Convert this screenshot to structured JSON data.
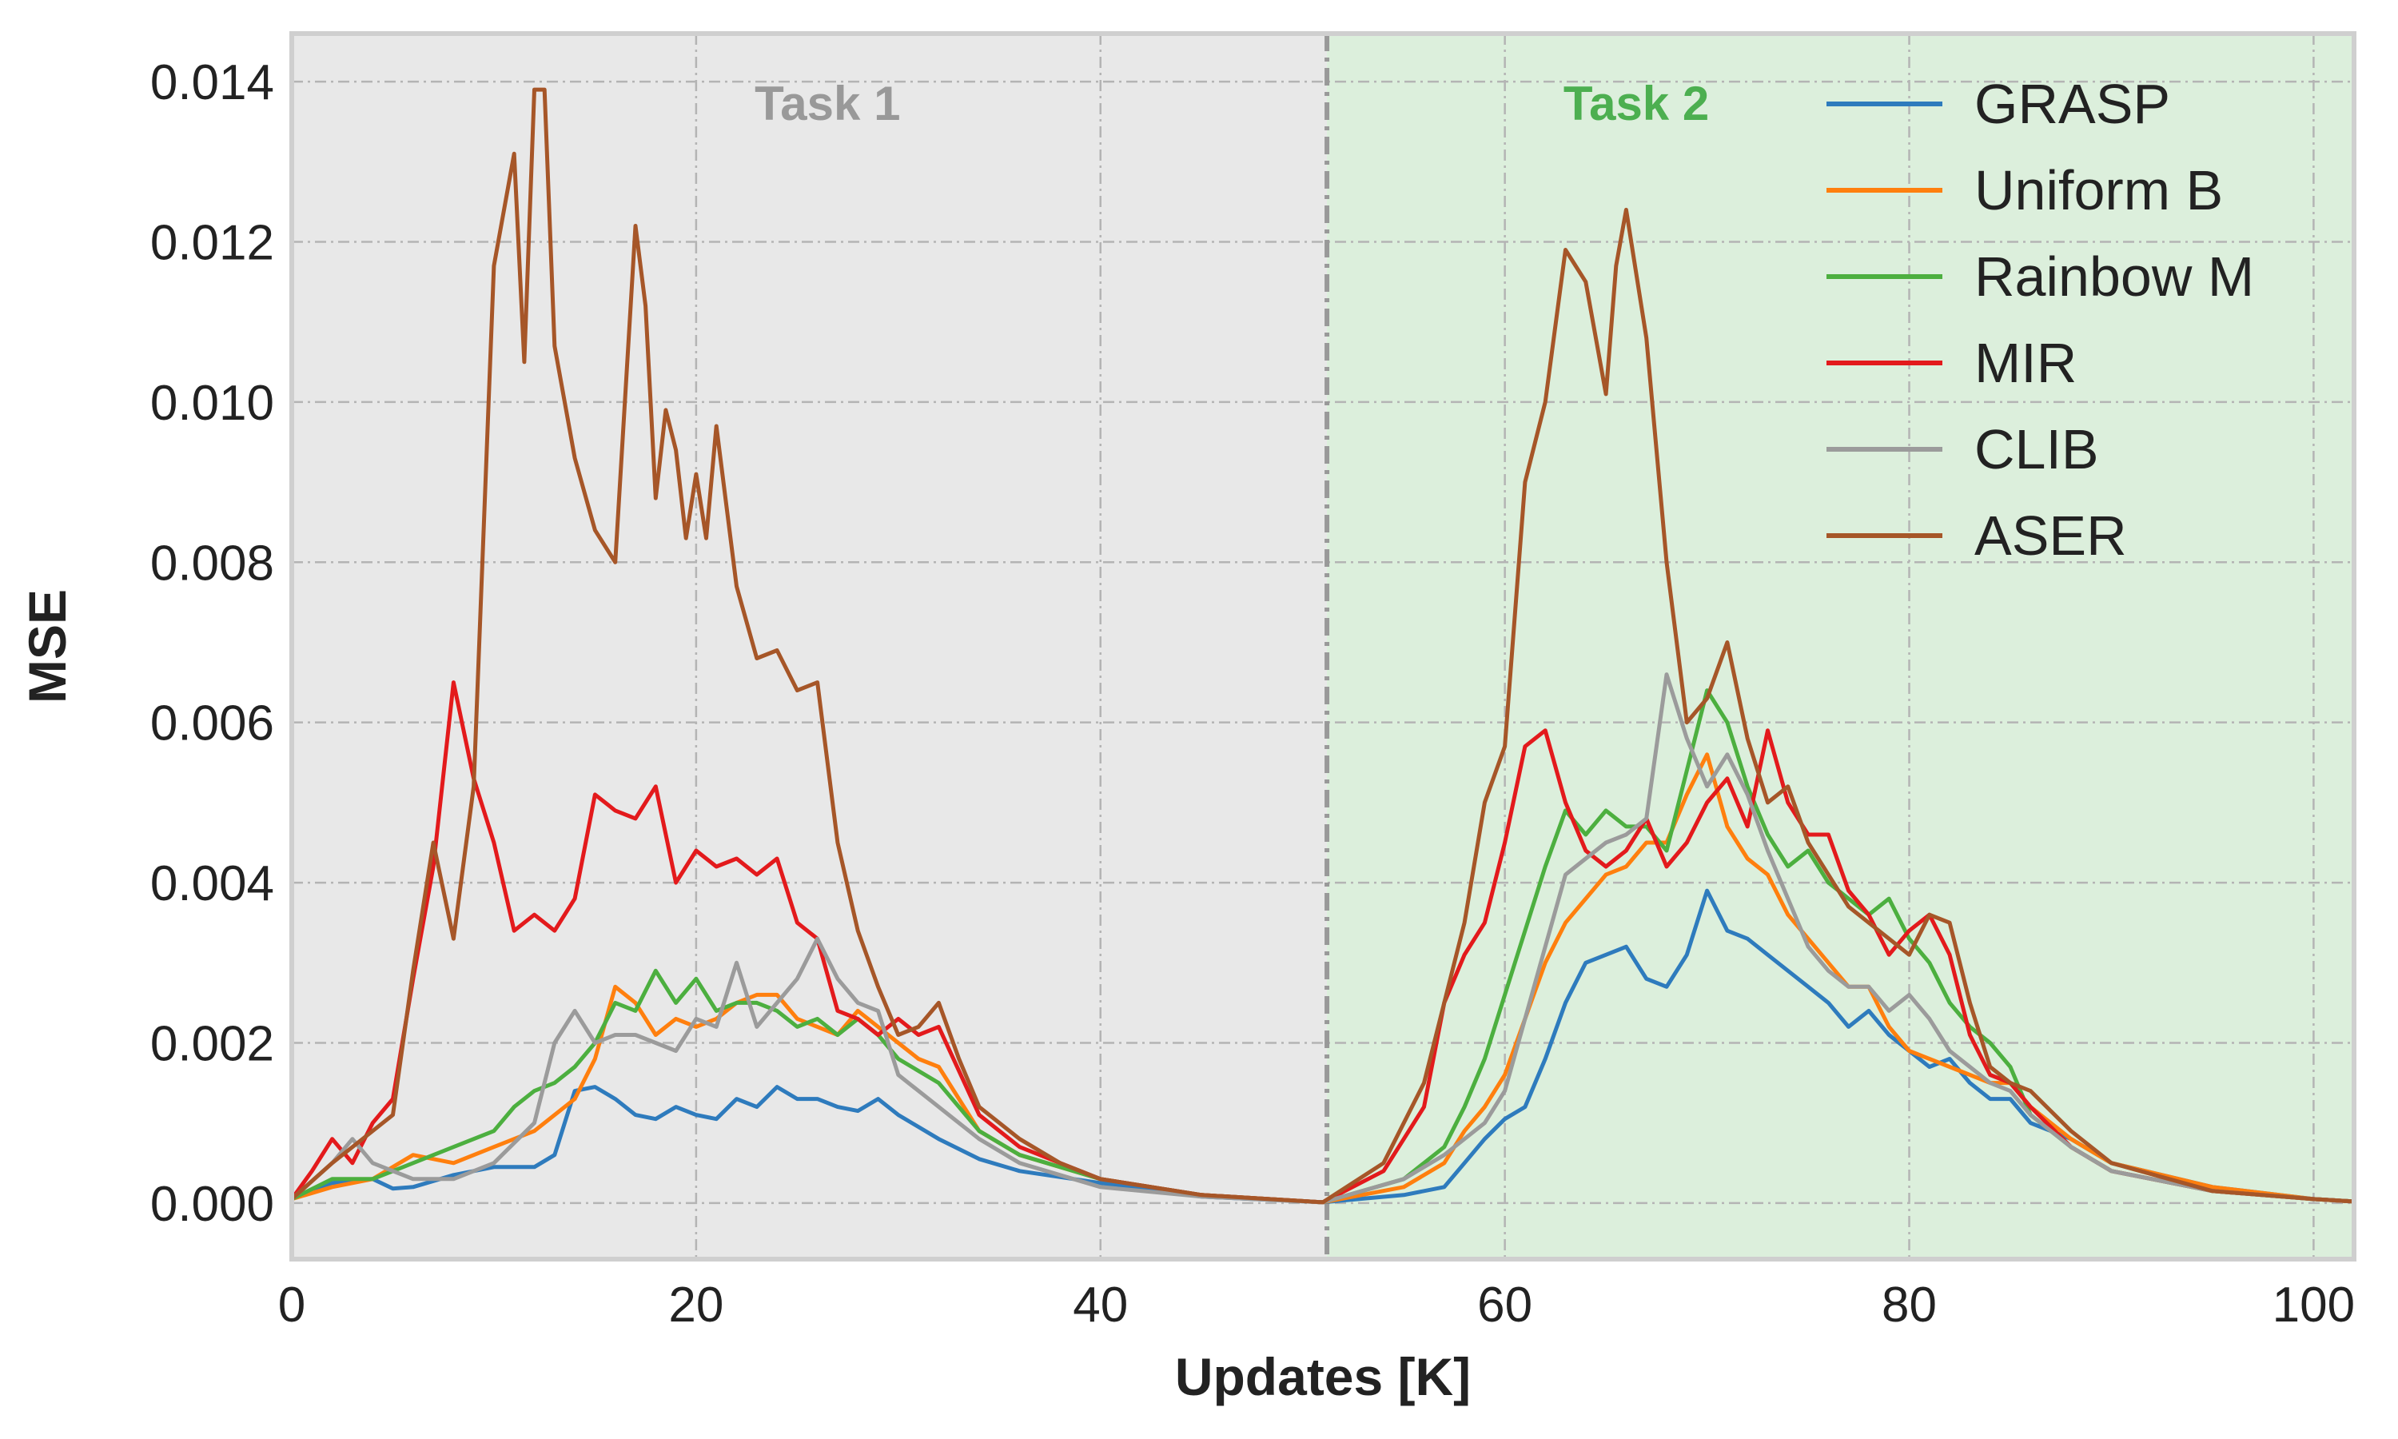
{
  "chart_data": {
    "type": "line",
    "title": "",
    "xlabel": "Updates [K]",
    "ylabel": "MSE",
    "xlim": [
      0,
      102
    ],
    "ylim": [
      -0.0007,
      0.0146
    ],
    "xticks": [
      0,
      20,
      40,
      60,
      80,
      100
    ],
    "yticks": [
      0.0,
      0.002,
      0.004,
      0.006,
      0.008,
      0.01,
      0.012,
      0.014
    ],
    "xtick_labels": [
      "0",
      "20",
      "40",
      "60",
      "80",
      "100"
    ],
    "ytick_labels": [
      "0.000",
      "0.002",
      "0.004",
      "0.006",
      "0.008",
      "0.010",
      "0.012",
      "0.014"
    ],
    "grid": true,
    "legend_position": "top-right",
    "task_boundary_x": 51.2,
    "regions": [
      {
        "label": "Task 1",
        "x_start": 0,
        "x_end": 51.2,
        "color": "#e8e8e8",
        "label_color": "#999999",
        "label_x": 26.5
      },
      {
        "label": "Task 2",
        "x_start": 51.2,
        "x_end": 102,
        "color": "#dcefdc",
        "label_color": "#4caf50",
        "label_x": 66.5
      }
    ],
    "series": [
      {
        "name": "GRASP",
        "color": "#2e7bbd",
        "x": [
          0,
          2,
          4,
          5,
          6,
          8,
          10,
          12,
          13,
          14,
          15,
          16,
          17,
          18,
          19,
          20,
          21,
          22,
          23,
          24,
          25,
          26,
          27,
          28,
          29,
          30,
          32,
          34,
          36,
          40,
          45,
          51,
          55,
          57,
          58,
          59,
          60,
          61,
          62,
          63,
          64,
          65,
          66,
          67,
          68,
          69,
          70,
          71,
          72,
          73,
          74,
          75,
          76,
          77,
          78,
          79,
          80,
          81,
          82,
          83,
          84,
          85,
          86,
          88,
          90,
          95,
          100,
          102
        ],
        "y": [
          5e-05,
          0.00025,
          0.0003,
          0.00018,
          0.0002,
          0.00035,
          0.00045,
          0.00045,
          0.0006,
          0.0014,
          0.00145,
          0.0013,
          0.0011,
          0.00105,
          0.0012,
          0.0011,
          0.00105,
          0.0013,
          0.0012,
          0.00145,
          0.0013,
          0.0013,
          0.0012,
          0.00115,
          0.0013,
          0.0011,
          0.0008,
          0.00055,
          0.0004,
          0.00025,
          8e-05,
          1e-05,
          0.0001,
          0.0002,
          0.0005,
          0.0008,
          0.00105,
          0.0012,
          0.0018,
          0.0025,
          0.003,
          0.0031,
          0.0032,
          0.0028,
          0.0027,
          0.0031,
          0.0039,
          0.0034,
          0.0033,
          0.0031,
          0.0029,
          0.0027,
          0.0025,
          0.0022,
          0.0024,
          0.0021,
          0.0019,
          0.0017,
          0.0018,
          0.0015,
          0.0013,
          0.0013,
          0.001,
          0.0008,
          0.0005,
          0.0002,
          5e-05,
          2e-05
        ]
      },
      {
        "name": "Uniform B",
        "color": "#ff7f0e",
        "x": [
          0,
          2,
          4,
          6,
          8,
          10,
          12,
          14,
          15,
          16,
          17,
          18,
          19,
          20,
          21,
          22,
          23,
          24,
          25,
          26,
          27,
          28,
          29,
          30,
          31,
          32,
          34,
          36,
          40,
          45,
          51,
          55,
          57,
          58,
          59,
          60,
          61,
          62,
          63,
          64,
          65,
          66,
          67,
          68,
          69,
          70,
          71,
          72,
          73,
          74,
          75,
          76,
          77,
          78,
          79,
          80,
          81,
          82,
          83,
          84,
          85,
          86,
          88,
          90,
          95,
          100,
          102
        ],
        "y": [
          5e-05,
          0.0002,
          0.0003,
          0.0006,
          0.0005,
          0.0007,
          0.0009,
          0.0013,
          0.0018,
          0.0027,
          0.0025,
          0.0021,
          0.0023,
          0.0022,
          0.0023,
          0.0025,
          0.0026,
          0.0026,
          0.0023,
          0.0022,
          0.0021,
          0.0024,
          0.0022,
          0.002,
          0.0018,
          0.0017,
          0.0009,
          0.0006,
          0.0003,
          0.0001,
          1e-05,
          0.0002,
          0.0005,
          0.0009,
          0.0012,
          0.0016,
          0.0023,
          0.003,
          0.0035,
          0.0038,
          0.0041,
          0.0042,
          0.0045,
          0.0045,
          0.0051,
          0.0056,
          0.0047,
          0.0043,
          0.0041,
          0.0036,
          0.0033,
          0.003,
          0.0027,
          0.0027,
          0.0022,
          0.0019,
          0.0018,
          0.0017,
          0.0016,
          0.0015,
          0.0015,
          0.0012,
          0.0008,
          0.0005,
          0.0002,
          5e-05,
          2e-05
        ]
      },
      {
        "name": "Rainbow M",
        "color": "#4caf3f",
        "x": [
          0,
          2,
          4,
          6,
          8,
          10,
          11,
          12,
          13,
          14,
          15,
          16,
          17,
          18,
          19,
          20,
          21,
          22,
          23,
          24,
          25,
          26,
          27,
          28,
          29,
          30,
          32,
          34,
          36,
          40,
          45,
          51,
          55,
          57,
          58,
          59,
          60,
          61,
          62,
          63,
          64,
          65,
          66,
          67,
          68,
          69,
          70,
          71,
          72,
          73,
          74,
          75,
          76,
          77,
          78,
          79,
          80,
          81,
          82,
          83,
          84,
          85,
          86,
          88,
          90,
          95,
          100,
          102
        ],
        "y": [
          5e-05,
          0.0003,
          0.0003,
          0.0005,
          0.0007,
          0.0009,
          0.0012,
          0.0014,
          0.0015,
          0.0017,
          0.002,
          0.0025,
          0.0024,
          0.0029,
          0.0025,
          0.0028,
          0.0024,
          0.0025,
          0.0025,
          0.0024,
          0.0022,
          0.0023,
          0.0021,
          0.0023,
          0.0021,
          0.0018,
          0.0015,
          0.0009,
          0.0006,
          0.0003,
          0.0001,
          1e-05,
          0.0003,
          0.0007,
          0.0012,
          0.0018,
          0.0026,
          0.0034,
          0.0042,
          0.0049,
          0.0046,
          0.0049,
          0.0047,
          0.0047,
          0.0044,
          0.0054,
          0.0064,
          0.006,
          0.0052,
          0.0046,
          0.0042,
          0.0044,
          0.004,
          0.0038,
          0.0036,
          0.0038,
          0.0033,
          0.003,
          0.0025,
          0.0022,
          0.002,
          0.0017,
          0.0011,
          0.0007,
          0.0004,
          0.00015,
          5e-05,
          2e-05
        ]
      },
      {
        "name": "MIR",
        "color": "#e31a1c",
        "x": [
          0,
          1,
          2,
          3,
          4,
          5,
          6,
          7,
          8,
          9,
          10,
          11,
          12,
          13,
          14,
          15,
          16,
          17,
          18,
          19,
          20,
          21,
          22,
          23,
          24,
          25,
          26,
          27,
          28,
          29,
          30,
          31,
          32,
          34,
          36,
          40,
          45,
          51,
          54,
          56,
          57,
          58,
          59,
          60,
          61,
          62,
          63,
          64,
          65,
          66,
          67,
          68,
          69,
          70,
          71,
          72,
          73,
          74,
          75,
          76,
          77,
          78,
          79,
          80,
          81,
          82,
          83,
          84,
          85,
          86,
          88,
          90,
          95,
          100,
          102
        ],
        "y": [
          5e-05,
          0.0004,
          0.0008,
          0.0005,
          0.001,
          0.0013,
          0.0028,
          0.0042,
          0.0065,
          0.0053,
          0.0045,
          0.0034,
          0.0036,
          0.0034,
          0.0038,
          0.0051,
          0.0049,
          0.0048,
          0.0052,
          0.004,
          0.0044,
          0.0042,
          0.0043,
          0.0041,
          0.0043,
          0.0035,
          0.0033,
          0.0024,
          0.0023,
          0.0021,
          0.0023,
          0.0021,
          0.0022,
          0.0011,
          0.0007,
          0.0003,
          0.0001,
          1e-05,
          0.0004,
          0.0012,
          0.0025,
          0.0031,
          0.0035,
          0.0045,
          0.0057,
          0.0059,
          0.005,
          0.0044,
          0.0042,
          0.0044,
          0.0048,
          0.0042,
          0.0045,
          0.005,
          0.0053,
          0.0047,
          0.0059,
          0.005,
          0.0046,
          0.0046,
          0.0039,
          0.0036,
          0.0031,
          0.0034,
          0.0036,
          0.0031,
          0.0021,
          0.0016,
          0.0015,
          0.0012,
          0.0007,
          0.0004,
          0.00015,
          5e-05,
          2e-05
        ]
      },
      {
        "name": "CLIB",
        "color": "#9b9b9b",
        "x": [
          0,
          2,
          3,
          4,
          6,
          8,
          10,
          12,
          13,
          14,
          15,
          16,
          17,
          18,
          19,
          20,
          21,
          22,
          23,
          24,
          25,
          26,
          27,
          28,
          29,
          30,
          32,
          34,
          36,
          40,
          45,
          51,
          55,
          57,
          58,
          59,
          60,
          61,
          62,
          63,
          64,
          65,
          66,
          67,
          68,
          69,
          70,
          71,
          72,
          73,
          74,
          75,
          76,
          77,
          78,
          79,
          80,
          81,
          82,
          83,
          84,
          85,
          86,
          88,
          90,
          95,
          100,
          102
        ],
        "y": [
          5e-05,
          0.0005,
          0.0008,
          0.0005,
          0.0003,
          0.0003,
          0.0005,
          0.001,
          0.002,
          0.0024,
          0.002,
          0.0021,
          0.0021,
          0.002,
          0.0019,
          0.0023,
          0.0022,
          0.003,
          0.0022,
          0.0025,
          0.0028,
          0.0033,
          0.0028,
          0.0025,
          0.0024,
          0.0016,
          0.0012,
          0.0008,
          0.0005,
          0.0002,
          8e-05,
          1e-05,
          0.0003,
          0.0006,
          0.0008,
          0.001,
          0.0014,
          0.0023,
          0.0032,
          0.0041,
          0.0043,
          0.0045,
          0.0046,
          0.0048,
          0.0066,
          0.0058,
          0.0052,
          0.0056,
          0.0051,
          0.0044,
          0.0038,
          0.0032,
          0.0029,
          0.0027,
          0.0027,
          0.0024,
          0.0026,
          0.0023,
          0.0019,
          0.0017,
          0.0015,
          0.0014,
          0.0011,
          0.0007,
          0.0004,
          0.00015,
          5e-05,
          2e-05
        ]
      },
      {
        "name": "ASER",
        "color": "#a65628",
        "x": [
          0,
          2,
          4,
          5,
          6,
          7,
          8,
          9,
          10,
          11,
          11.5,
          12,
          12.5,
          13,
          14,
          15,
          16,
          17,
          17.5,
          18,
          18.5,
          19,
          19.5,
          20,
          20.5,
          21,
          22,
          23,
          24,
          25,
          26,
          27,
          28,
          29,
          30,
          31,
          32,
          33,
          34,
          36,
          38,
          40,
          45,
          51,
          54,
          56,
          57,
          58,
          59,
          60,
          61,
          62,
          63,
          64,
          65,
          65.5,
          66,
          67,
          68,
          69,
          70,
          71,
          72,
          73,
          74,
          75,
          76,
          77,
          78,
          79,
          80,
          81,
          82,
          83,
          84,
          85,
          86,
          88,
          90,
          95,
          100,
          102
        ],
        "y": [
          5e-05,
          0.0005,
          0.0009,
          0.0011,
          0.0029,
          0.0045,
          0.0033,
          0.0052,
          0.0117,
          0.0131,
          0.0105,
          0.0139,
          0.0139,
          0.0107,
          0.0093,
          0.0084,
          0.008,
          0.0122,
          0.0112,
          0.0088,
          0.0099,
          0.0094,
          0.0083,
          0.0091,
          0.0083,
          0.0097,
          0.0077,
          0.0068,
          0.0069,
          0.0064,
          0.0065,
          0.0045,
          0.0034,
          0.0027,
          0.0021,
          0.0022,
          0.0025,
          0.0018,
          0.0012,
          0.0008,
          0.0005,
          0.0003,
          0.0001,
          1e-05,
          0.0005,
          0.0015,
          0.0025,
          0.0035,
          0.005,
          0.0057,
          0.009,
          0.01,
          0.0119,
          0.0115,
          0.0101,
          0.0117,
          0.0124,
          0.0108,
          0.008,
          0.006,
          0.0063,
          0.007,
          0.0058,
          0.005,
          0.0052,
          0.0045,
          0.0041,
          0.0037,
          0.0035,
          0.0033,
          0.0031,
          0.0036,
          0.0035,
          0.0025,
          0.0017,
          0.0015,
          0.0014,
          0.0009,
          0.0005,
          0.00015,
          5e-05,
          2e-05
        ]
      }
    ]
  }
}
